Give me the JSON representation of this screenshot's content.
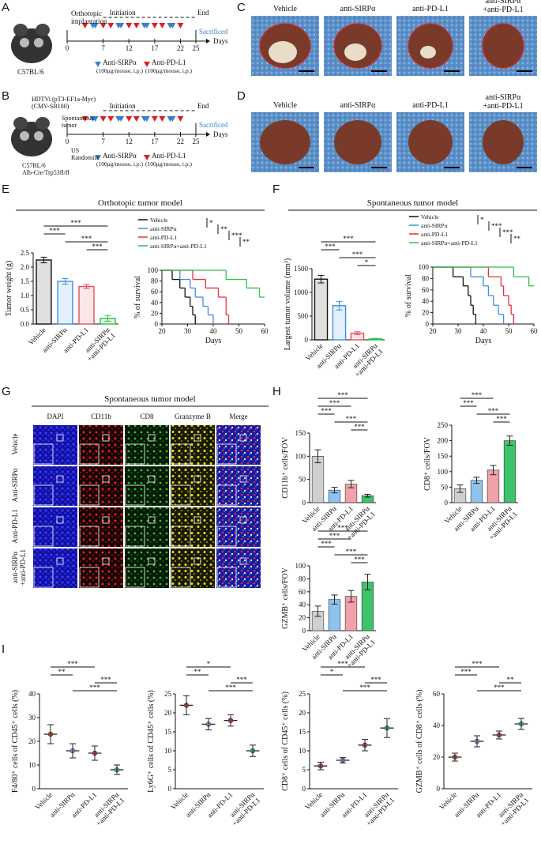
{
  "letters": [
    "A",
    "B",
    "C",
    "D",
    "E",
    "F",
    "G",
    "H",
    "I"
  ],
  "schematic_a": {
    "implantation": "Orthotopic\nimplantation",
    "strain": "C57BL/6",
    "initiation": "Initiation",
    "end": "End",
    "sacrificed": "Sacrificed",
    "days_label": "Days",
    "ticks": [
      "0",
      "7",
      "12",
      "17",
      "22",
      "25"
    ],
    "legend": [
      {
        "name": "Anti-SIRPα",
        "dose": "(100μg/mouse, i.p.)",
        "color": "#3b7fd1"
      },
      {
        "name": "Anti-PD-L1",
        "dose": "(100μg/mouse, i.p.)",
        "color": "#e02020"
      }
    ]
  },
  "schematic_b": {
    "hdtvi": "HDTVi (pT3-EF1a-Myc)\n(CMV-SB100)",
    "spontaneous": "Spontaneous\ntumor",
    "randomize": "US\nRandomize",
    "strain": "C57BL/6\nAlb-Cre/Trp53fl/fl",
    "initiation": "Initiation",
    "end": "End",
    "sacrificed": "Sacrificed",
    "days_label": "Days",
    "ticks": [
      "0",
      "7",
      "12",
      "17",
      "22",
      "25"
    ],
    "legend": [
      {
        "name": "Anti-SIRPα",
        "dose": "(100μg/mouse, i.p.)",
        "color": "#3b7fd1"
      },
      {
        "name": "Anti-PD-L1",
        "dose": "(100μg/mouse, i.p.)",
        "color": "#e02020"
      }
    ]
  },
  "photos_c": {
    "conditions": [
      "Vehicle",
      "anti-SIRPα",
      "anti-PD-L1",
      "anti-SIRPα\n+anti-PD-L1"
    ]
  },
  "photos_d": {
    "conditions": [
      "Vehicle",
      "anti-SIRPα",
      "anti-PD-L1",
      "anti-SIRPα\n+anti-PD-L1"
    ]
  },
  "headings": {
    "e": "Orthotopic tumor model",
    "f": "Spontaneous tumor model",
    "g": "Spontaneous tumor model"
  },
  "microscopy": {
    "columns": [
      "DAPI",
      "CD11b",
      "CD8",
      "Granzyme B",
      "Merge"
    ],
    "rows": [
      "Vehicle",
      "Anti-SIRPα",
      "Anti-PD-L1",
      "anti-SIRPα\n+anti-PD-L1"
    ]
  },
  "chart_data": [
    {
      "type": "bar",
      "bar_style": "outline",
      "ylabel": "Tumor weight (g)",
      "categories": [
        "Vehicle",
        "anti-SIRPα",
        "anti-PD-L1",
        "anti-SIRPα\n+anti-PD-L1"
      ],
      "values": [
        2.25,
        1.5,
        1.32,
        0.2
      ],
      "errors": [
        0.1,
        0.1,
        0.07,
        0.1
      ],
      "colors": [
        "#111111",
        "#3b8fe0",
        "#e8505b",
        "#2fbf4a"
      ],
      "ylim": [
        0,
        2.5
      ],
      "yticks": [
        {
          "value": 0,
          "label": "0.0"
        },
        {
          "value": 0.5,
          "label": "0.5"
        },
        {
          "value": 1,
          "label": "1.0"
        },
        {
          "value": 1.5,
          "label": "1.5"
        },
        {
          "value": 2,
          "label": "2.0"
        },
        {
          "value": 2.5,
          "label": "2.5"
        }
      ],
      "significance": [
        {
          "from": 0,
          "to": 3,
          "label": "***"
        },
        {
          "from": 0,
          "to": 1,
          "label": "***"
        },
        {
          "from": 1,
          "to": 3,
          "label": "***"
        },
        {
          "from": 2,
          "to": 3,
          "label": "***"
        }
      ]
    },
    {
      "type": "line",
      "ylabel": "% of survival",
      "xlabel": "Days",
      "xlim": [
        20,
        60
      ],
      "xticks": [
        20,
        30,
        40,
        50,
        60
      ],
      "ylim": [
        0,
        100
      ],
      "yticks": [
        0,
        20,
        40,
        60,
        80,
        100
      ],
      "series": [
        {
          "name": "Vehicle",
          "color": "#111111",
          "x": [
            20,
            24,
            27,
            29,
            31,
            32,
            33
          ],
          "values": [
            100,
            83,
            67,
            50,
            33,
            17,
            0
          ]
        },
        {
          "name": "anti-SIRPα",
          "color": "#3b8fe0",
          "x": [
            20,
            27,
            31,
            33,
            36,
            38,
            40
          ],
          "values": [
            100,
            83,
            67,
            50,
            33,
            17,
            0
          ]
        },
        {
          "name": "anti-PD-L1",
          "color": "#e8303b",
          "x": [
            20,
            32,
            37,
            42,
            45,
            46
          ],
          "values": [
            100,
            83,
            67,
            50,
            17,
            0
          ]
        },
        {
          "name": "anti-SIRPα+anti-PD-L1",
          "color": "#2fbf4a",
          "x": [
            20,
            45,
            53,
            58,
            60
          ],
          "values": [
            100,
            83,
            67,
            50,
            50
          ]
        }
      ],
      "legend_stats": [
        "*",
        "**",
        "***",
        "**"
      ]
    },
    {
      "type": "bar",
      "bar_style": "outline",
      "ylabel": "Largest tumor volume (mm³)",
      "categories": [
        "Vehicle",
        "anti-SIRPα",
        "anti-PD-L1",
        "anti-SIRPα\n+anti-PD-L1"
      ],
      "values": [
        1280,
        720,
        140,
        20
      ],
      "errors": [
        80,
        90,
        30,
        10
      ],
      "colors": [
        "#111111",
        "#3b8fe0",
        "#e8505b",
        "#2fbf4a"
      ],
      "ylim": [
        0,
        1500
      ],
      "yticks": [
        0,
        500,
        1000,
        1500
      ],
      "significance": [
        {
          "from": 0,
          "to": 3,
          "label": "***"
        },
        {
          "from": 0,
          "to": 1,
          "label": "***"
        },
        {
          "from": 1,
          "to": 3,
          "label": "***"
        },
        {
          "from": 2,
          "to": 3,
          "label": "*"
        }
      ]
    },
    {
      "type": "line",
      "ylabel": "% of survival",
      "xlabel": "Days",
      "xlim": [
        20,
        60
      ],
      "xticks": [
        20,
        30,
        40,
        50,
        60
      ],
      "ylim": [
        0,
        100
      ],
      "yticks": [
        0,
        20,
        40,
        60,
        80,
        100
      ],
      "series": [
        {
          "name": "Vehicle",
          "color": "#111111",
          "x": [
            20,
            28,
            32,
            34,
            35,
            36,
            37
          ],
          "values": [
            100,
            83,
            67,
            50,
            33,
            17,
            0
          ]
        },
        {
          "name": "anti-SIRPα",
          "color": "#3b8fe0",
          "x": [
            20,
            35,
            40,
            42,
            44,
            46,
            48
          ],
          "values": [
            100,
            83,
            67,
            50,
            33,
            17,
            0
          ]
        },
        {
          "name": "anti-PD-L1",
          "color": "#e8303b",
          "x": [
            20,
            42,
            47,
            48,
            50,
            51,
            52
          ],
          "values": [
            100,
            83,
            67,
            50,
            33,
            17,
            0
          ]
        },
        {
          "name": "anti-SIRPα+anti-PD-L1",
          "color": "#2fbf4a",
          "x": [
            20,
            52,
            58,
            60
          ],
          "values": [
            100,
            83,
            67,
            67
          ]
        }
      ],
      "legend_stats": [
        "*",
        "***",
        "***",
        "**"
      ]
    },
    {
      "type": "bar",
      "bar_style": "filled",
      "ylabel": "CD11b⁺ cells/FOV",
      "categories": [
        "Vehicle",
        "anti-SIRPα",
        "anti-PD-L1",
        "anti-SIRPα\n+anti-PD-L1"
      ],
      "values": [
        100,
        27,
        40,
        15
      ],
      "errors": [
        14,
        6,
        8,
        3
      ],
      "colors": [
        "#d0d0d0",
        "#8ec3ef",
        "#f2a1a8",
        "#3cc46a"
      ],
      "ylim": [
        0,
        150
      ],
      "yticks": [
        0,
        50,
        100,
        150
      ],
      "significance": [
        {
          "from": 0,
          "to": 3,
          "label": "***"
        },
        {
          "from": 0,
          "to": 2,
          "label": "***"
        },
        {
          "from": 0,
          "to": 1,
          "label": "***"
        },
        {
          "from": 1,
          "to": 3,
          "label": "***"
        },
        {
          "from": 2,
          "to": 3,
          "label": "***"
        }
      ]
    },
    {
      "type": "bar",
      "bar_style": "filled",
      "ylabel": "CD8⁺ cells/FOV",
      "categories": [
        "Vehicle",
        "anti-SIRPα",
        "anti-PD-L1",
        "anti-SIRPα\n+anti-PD-L1"
      ],
      "values": [
        45,
        72,
        105,
        200
      ],
      "errors": [
        12,
        10,
        15,
        15
      ],
      "colors": [
        "#d0d0d0",
        "#8ec3ef",
        "#f2a1a8",
        "#3cc46a"
      ],
      "ylim": [
        0,
        250
      ],
      "yticks": [
        0,
        50,
        100,
        150,
        200,
        250
      ],
      "significance": [
        {
          "from": 0,
          "to": 2,
          "label": "***"
        },
        {
          "from": 0,
          "to": 1,
          "label": "***"
        },
        {
          "from": 1,
          "to": 3,
          "label": "***"
        },
        {
          "from": 2,
          "to": 3,
          "label": "***"
        }
      ]
    },
    {
      "type": "bar",
      "bar_style": "filled",
      "ylabel": "GZMB⁺ cells/FOV",
      "categories": [
        "Vehicle",
        "anti-SIRPα",
        "anti-PD-L1",
        "anti-SIRPα\n+anti-PD-L1"
      ],
      "values": [
        30,
        48,
        53,
        75
      ],
      "errors": [
        8,
        7,
        9,
        12
      ],
      "colors": [
        "#d0d0d0",
        "#8ec3ef",
        "#f2a1a8",
        "#3cc46a"
      ],
      "ylim": [
        0,
        100
      ],
      "yticks": [
        0,
        20,
        40,
        60,
        80,
        100
      ],
      "significance": [
        {
          "from": 0,
          "to": 3,
          "label": "***"
        },
        {
          "from": 0,
          "to": 2,
          "label": "***"
        },
        {
          "from": 0,
          "to": 1,
          "label": "***"
        },
        {
          "from": 1,
          "to": 3,
          "label": "***"
        },
        {
          "from": 2,
          "to": 3,
          "label": "***"
        }
      ]
    },
    {
      "type": "dot",
      "ylabel": "F4/80⁺ cells of CD45⁺ cells (%)",
      "categories": [
        "Vehicle",
        "anti-SIRPα",
        "anti-PD-L1",
        "anti-SIRPα\n+anti-PD-L1"
      ],
      "values": [
        23,
        16,
        15,
        8
      ],
      "errors": [
        4,
        3,
        3,
        2
      ],
      "colors": [
        "#a8503c",
        "#9a7fc8",
        "#c23a52",
        "#3da86a"
      ],
      "ylim": [
        0,
        40
      ],
      "yticks": [
        0,
        10,
        20,
        30,
        40
      ],
      "significance": [
        {
          "from": 0,
          "to": 2,
          "label": "***"
        },
        {
          "from": 0,
          "to": 1,
          "label": "**"
        },
        {
          "from": 2,
          "to": 3,
          "label": "***"
        },
        {
          "from": 1,
          "to": 3,
          "label": "***"
        }
      ]
    },
    {
      "type": "dot",
      "ylabel": "Ly6G⁺ cells of CD45⁺ cells (%)",
      "categories": [
        "Vehicle",
        "anti-SIRPα",
        "anti-PD-L1",
        "anti-SIRPα\n+anti-PD-L1"
      ],
      "values": [
        22,
        17,
        18,
        10
      ],
      "errors": [
        2.5,
        1.5,
        1.5,
        1.5
      ],
      "colors": [
        "#a8503c",
        "#9a7fc8",
        "#c23a52",
        "#3da86a"
      ],
      "ylim": [
        0,
        25
      ],
      "yticks": [
        0,
        5,
        10,
        15,
        20,
        25
      ],
      "significance": [
        {
          "from": 0,
          "to": 2,
          "label": "*"
        },
        {
          "from": 0,
          "to": 1,
          "label": "**"
        },
        {
          "from": 2,
          "to": 3,
          "label": "***"
        },
        {
          "from": 1,
          "to": 3,
          "label": "***"
        }
      ]
    },
    {
      "type": "dot",
      "ylabel": "CD8⁺ cells of CD45⁺ cells (%)",
      "categories": [
        "Vehicle",
        "anti-SIRPα",
        "anti-PD-L1",
        "anti-SIRPα\n+anti-PD-L1"
      ],
      "values": [
        6,
        7.5,
        11.5,
        16
      ],
      "errors": [
        1,
        0.7,
        1.5,
        2.5
      ],
      "colors": [
        "#a8503c",
        "#9a7fc8",
        "#c23a52",
        "#3da86a"
      ],
      "ylim": [
        0,
        25
      ],
      "yticks": [
        0,
        5,
        10,
        15,
        20,
        25
      ],
      "significance": [
        {
          "from": 0,
          "to": 2,
          "label": "***"
        },
        {
          "from": 0,
          "to": 1,
          "label": "*"
        },
        {
          "from": 2,
          "to": 3,
          "label": "***"
        },
        {
          "from": 1,
          "to": 3,
          "label": "***"
        }
      ]
    },
    {
      "type": "dot",
      "ylabel": "GZMB⁺ cells of CD8⁺ cells (%)",
      "categories": [
        "Vehicle",
        "anti-SIRPα",
        "anti-PD-L1",
        "anti-SIRPα\n+anti-PD-L1"
      ],
      "values": [
        20,
        30,
        34,
        41
      ],
      "errors": [
        2.5,
        3.5,
        2.5,
        3.5
      ],
      "colors": [
        "#a8503c",
        "#9a7fc8",
        "#c23a52",
        "#3da86a"
      ],
      "ylim": [
        0,
        60
      ],
      "yticks": [
        0,
        20,
        40,
        60
      ],
      "significance": [
        {
          "from": 0,
          "to": 2,
          "label": "***"
        },
        {
          "from": 0,
          "to": 1,
          "label": "***"
        },
        {
          "from": 2,
          "to": 3,
          "label": "**"
        },
        {
          "from": 1,
          "to": 3,
          "label": "***"
        }
      ]
    }
  ]
}
